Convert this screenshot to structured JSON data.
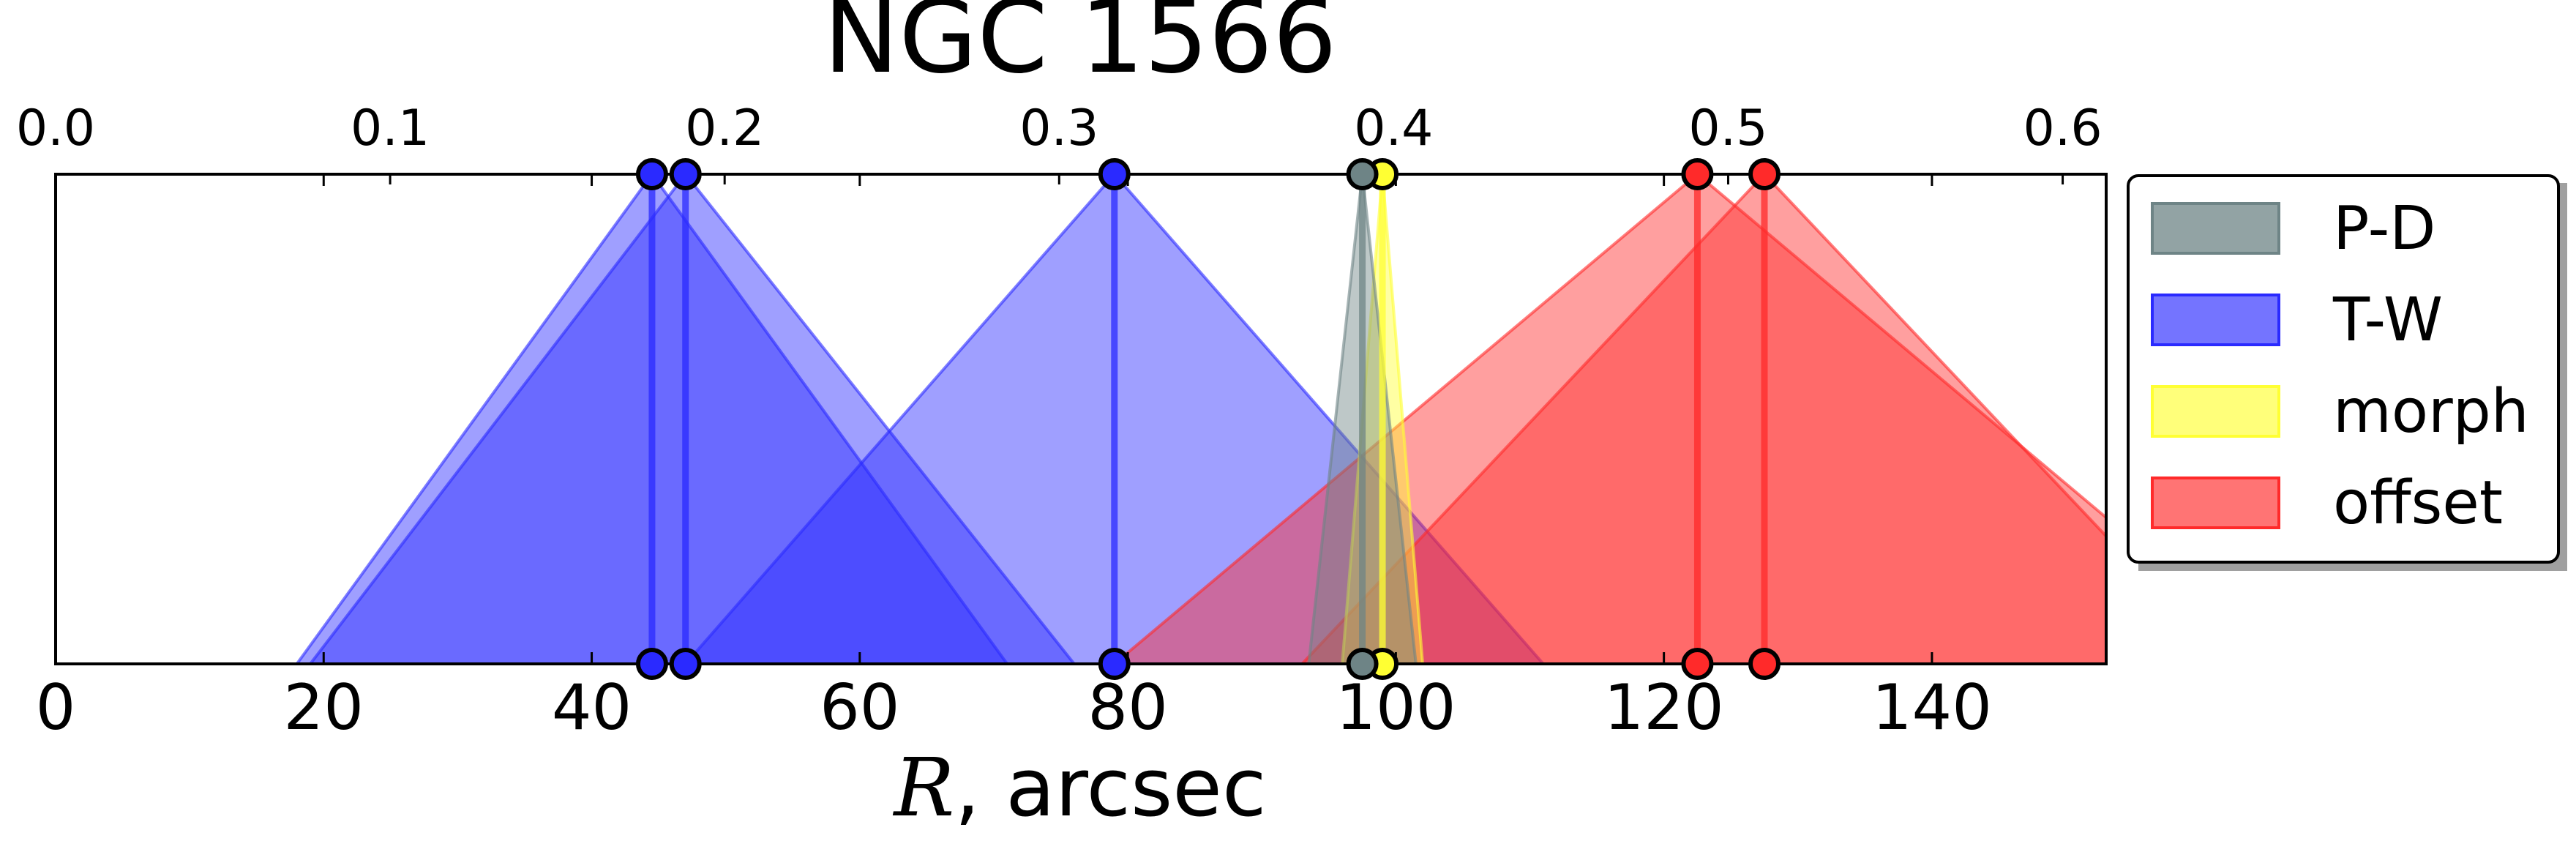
{
  "chart_data": {
    "type": "area",
    "title": "NGC 1566",
    "xlabel_italic": "R",
    "xlabel_rest": ", arcsec",
    "xlim": [
      0,
      153
    ],
    "x_ticks": [
      0,
      20,
      40,
      60,
      80,
      100,
      120,
      140
    ],
    "x_tick_labels": [
      "0",
      "20",
      "40",
      "60",
      "80",
      "100",
      "120",
      "140"
    ],
    "top_axis": {
      "xlim": [
        0.0,
        0.613
      ],
      "ticks": [
        0.0,
        0.1,
        0.2,
        0.3,
        0.4,
        0.5,
        0.6
      ],
      "tick_labels": [
        "0.0",
        "0.1",
        "0.2",
        "0.3",
        "0.4",
        "0.5",
        "0.6"
      ]
    },
    "grid": false,
    "legend_position": "right",
    "series": [
      {
        "name": "P-D",
        "color": "#6e8486",
        "markers": [
          {
            "r": 97.5,
            "left": 93.5,
            "right": 101.5
          }
        ]
      },
      {
        "name": "T-W",
        "color": "#2a2aff",
        "markers": [
          {
            "r": 44.5,
            "left": 18,
            "right": 71
          },
          {
            "r": 47.0,
            "left": 19,
            "right": 76
          },
          {
            "r": 79.0,
            "left": 47,
            "right": 111
          }
        ]
      },
      {
        "name": "morph",
        "color": "#ffff33",
        "markers": [
          {
            "r": 99.0,
            "left": 96,
            "right": 102
          }
        ]
      },
      {
        "name": "offset",
        "color": "#ff2a2a",
        "markers": [
          {
            "r": 122.5,
            "left": 79,
            "right": 166
          },
          {
            "r": 127.5,
            "left": 93,
            "right": 162
          }
        ]
      }
    ]
  }
}
